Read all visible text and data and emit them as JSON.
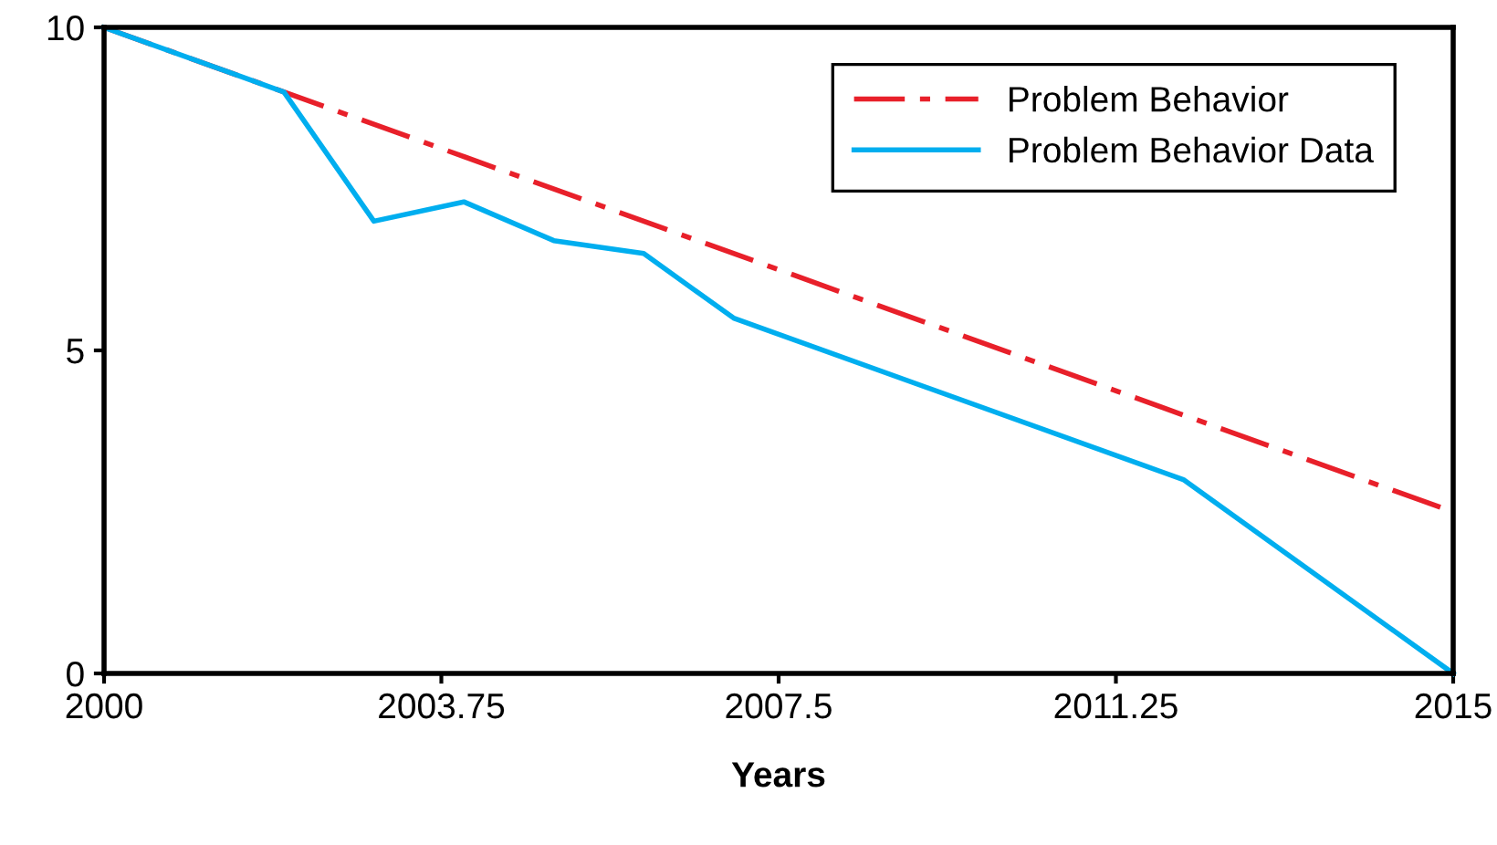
{
  "chart_data": {
    "type": "line",
    "xlabel": "Years",
    "xlim": [
      2000,
      2015
    ],
    "xticks": [
      2000,
      2003.75,
      2007.5,
      2011.25,
      2015
    ],
    "ylim": [
      0,
      10
    ],
    "yticks": [
      0,
      5,
      10
    ],
    "grid": false,
    "legend": "top right",
    "marker": "none",
    "series": [
      {
        "name": "Problem Behavior",
        "color": "#e8202a",
        "line_style": "dashdot",
        "x": [
          2000,
          2015
        ],
        "values": [
          10,
          2.5
        ]
      },
      {
        "name": "Problem Behavior Data",
        "color": "#00aeef",
        "line_style": "solid",
        "x": [
          2000,
          2002,
          2003,
          2004,
          2005,
          2006,
          2007,
          2012,
          2015
        ],
        "values": [
          10,
          9,
          7,
          7.3,
          6.7,
          6.5,
          5.5,
          3,
          0
        ]
      }
    ]
  }
}
